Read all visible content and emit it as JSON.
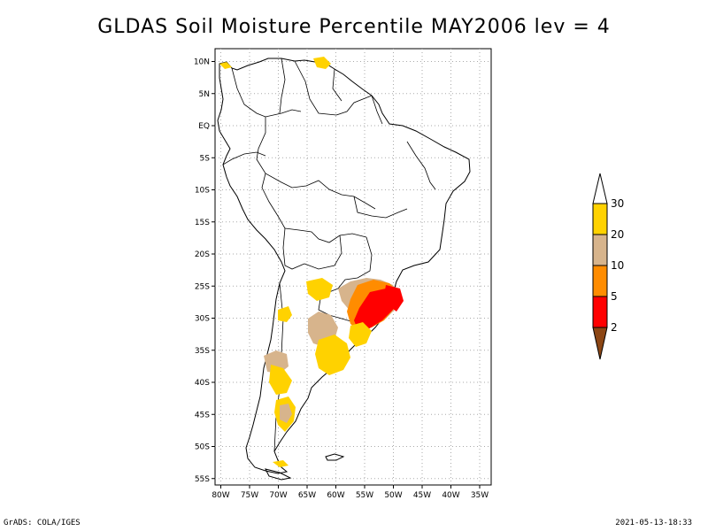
{
  "title": "GLDAS Soil Moisture Percentile MAY2006 lev = 4",
  "axes": {
    "lat_ticks": [
      "10N",
      "5N",
      "EQ",
      "5S",
      "10S",
      "15S",
      "20S",
      "25S",
      "30S",
      "35S",
      "40S",
      "45S",
      "50S",
      "55S"
    ],
    "lon_ticks": [
      "80W",
      "75W",
      "70W",
      "65W",
      "60W",
      "55W",
      "50W",
      "45W",
      "40W",
      "35W"
    ],
    "lat_range": [
      -56,
      12
    ],
    "lon_range": [
      -81,
      -33
    ],
    "grid": "dotted"
  },
  "legend": {
    "levels": [
      "30",
      "20",
      "10",
      "5",
      "2"
    ],
    "colors": {
      "above_30": "#ffffff",
      "20_30": "#ffd200",
      "10_20": "#d7b48c",
      "5_10": "#ff8c00",
      "2_5": "#ff0000",
      "below_2": "#8c4614"
    }
  },
  "footer": {
    "left": "GrADS: COLA/IGES",
    "right": "2021-05-13-18:33"
  }
}
